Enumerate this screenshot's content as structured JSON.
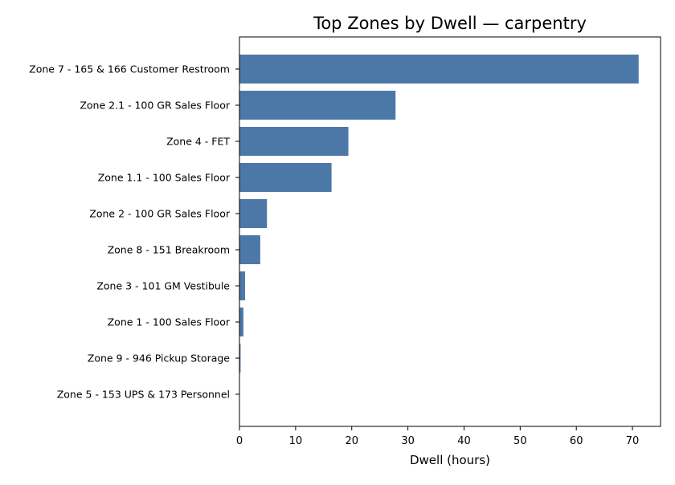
{
  "chart_data": {
    "type": "bar",
    "orientation": "horizontal",
    "title": "Top Zones by Dwell — carpentry",
    "xlabel": "Dwell (hours)",
    "ylabel": "",
    "xlim": [
      0,
      75
    ],
    "xticks": [
      0,
      10,
      20,
      30,
      40,
      50,
      60,
      70
    ],
    "grid": false,
    "legend": "none",
    "bar_color": "#4c78a8",
    "categories": [
      "Zone 7 - 165 & 166 Customer Restroom",
      "Zone 2.1 - 100 GR Sales Floor",
      "Zone 4 - FET",
      "Zone 1.1 - 100 Sales Floor",
      "Zone 2 - 100 GR Sales Floor",
      "Zone 8 - 151 Breakroom",
      "Zone 3 - 101 GM Vestibule",
      "Zone 1 - 100 Sales Floor",
      "Zone 9 - 946 Pickup Storage",
      "Zone 5 - 153 UPS & 173 Personnel"
    ],
    "values": [
      71.1,
      27.8,
      19.4,
      16.4,
      4.9,
      3.7,
      1.0,
      0.7,
      0.2,
      0.05
    ]
  }
}
